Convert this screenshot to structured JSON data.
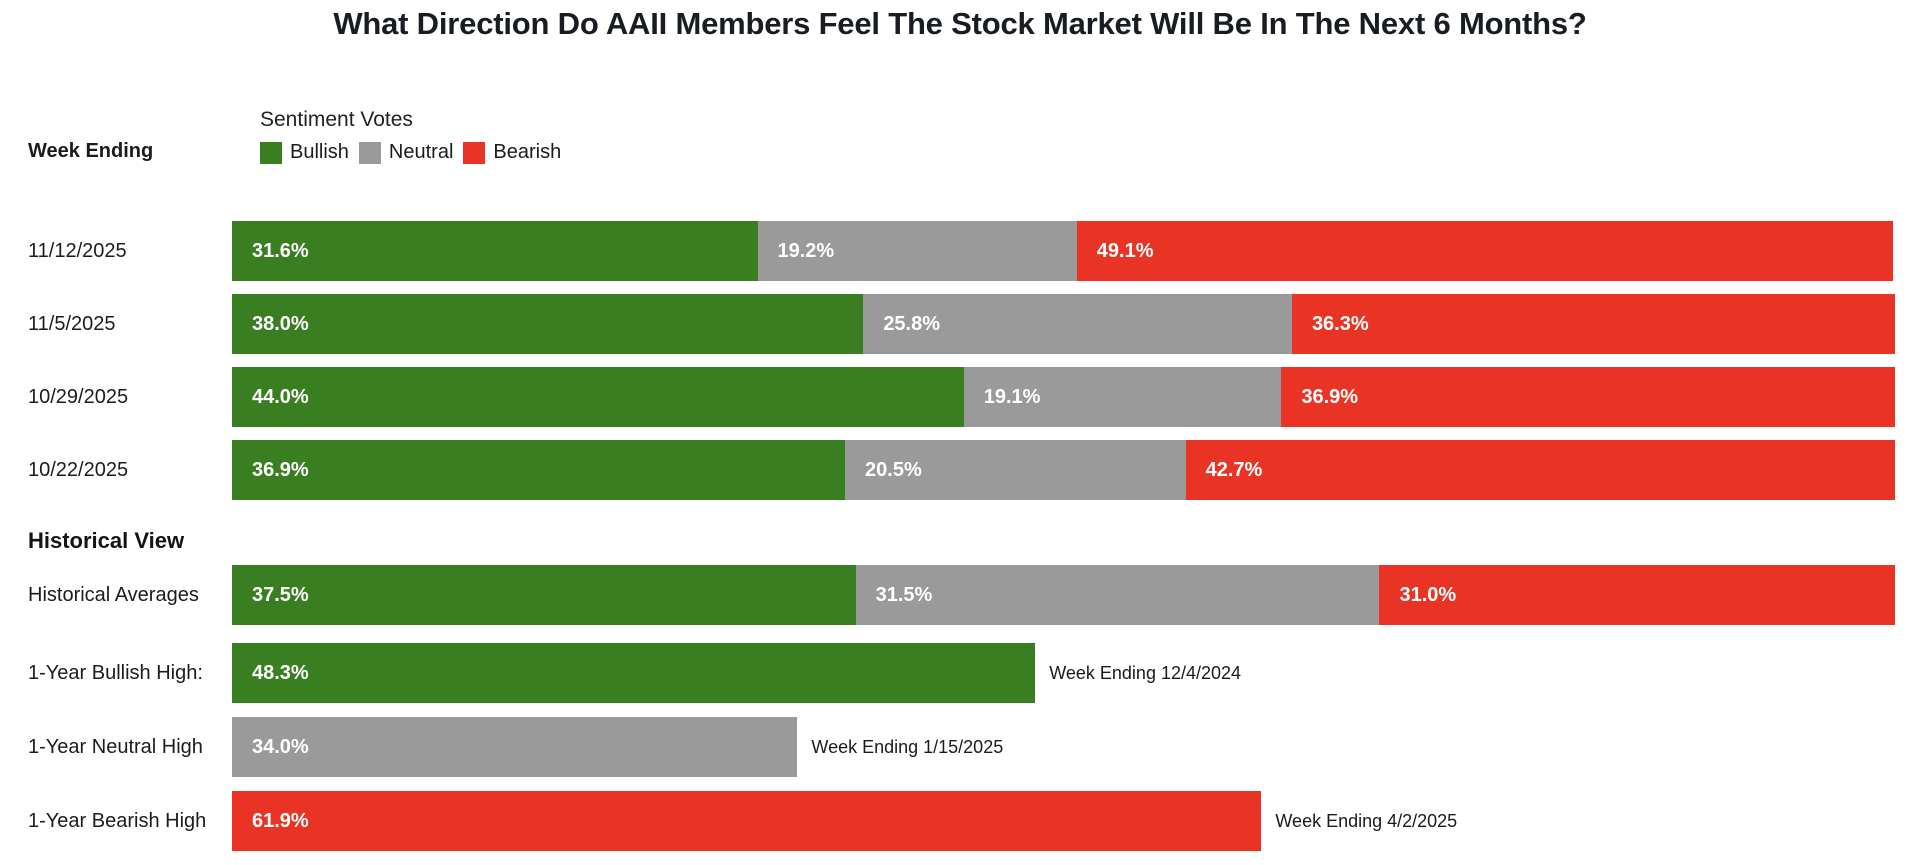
{
  "title": "What Direction Do AAII Members Feel The Stock Market Will Be In The Next 6 Months?",
  "week_ending_header": "Week Ending",
  "historical_header": "Historical View",
  "legend": {
    "title": "Sentiment Votes"
  },
  "colors": {
    "bullish": "#3A7E22",
    "neutral": "#9A9A9A",
    "bearish": "#E93425",
    "title_text": "#191D23",
    "bar_value_text": "#FFFFFF"
  },
  "chart_data": {
    "type": "bar",
    "orientation": "horizontal",
    "stacked": true,
    "unit": "%",
    "axis_max": 100,
    "grid": false,
    "legend_position": "top",
    "segments": [
      "Bullish",
      "Neutral",
      "Bearish"
    ],
    "segment_colors": [
      "#3A7E22",
      "#9A9A9A",
      "#E93425"
    ],
    "weekly_rows": [
      {
        "label": "11/12/2025",
        "values": [
          31.6,
          19.2,
          49.1
        ]
      },
      {
        "label": "11/5/2025",
        "values": [
          38.0,
          25.8,
          36.3
        ]
      },
      {
        "label": "10/29/2025",
        "values": [
          44.0,
          19.1,
          36.9
        ]
      },
      {
        "label": "10/22/2025",
        "values": [
          36.9,
          20.5,
          42.7
        ]
      }
    ],
    "historical_rows": [
      {
        "label": "Historical Averages",
        "values": [
          37.5,
          31.5,
          31.0
        ]
      }
    ],
    "high_rows": [
      {
        "label": "1-Year Bullish High:",
        "segment_index": 0,
        "value": 48.3,
        "annotation": "Week Ending 12/4/2024"
      },
      {
        "label": "1-Year Neutral High",
        "segment_index": 1,
        "value": 34.0,
        "annotation": "Week Ending 1/15/2025"
      },
      {
        "label": "1-Year Bearish High",
        "segment_index": 2,
        "value": 61.9,
        "annotation": "Week Ending 4/2/2025"
      }
    ]
  }
}
